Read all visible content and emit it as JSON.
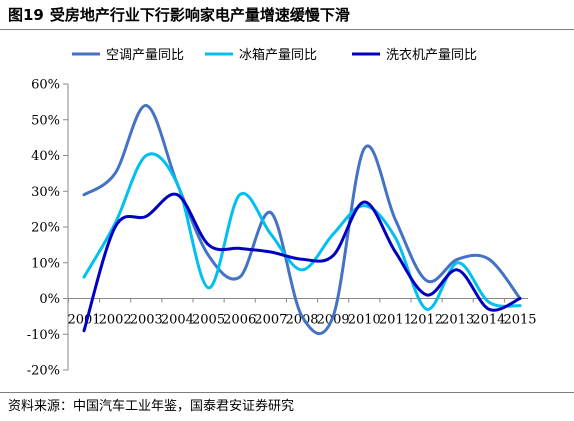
{
  "figure": {
    "number": "图19",
    "title": "受房地产行业下行影响家电产量增速缓慢下滑",
    "source": "资料来源：中国汽车工业年鉴，国泰君安证券研究"
  },
  "chart_data": {
    "type": "line",
    "title": "受房地产行业下行影响家电产量增速缓慢下滑",
    "xlabel": "",
    "ylabel": "",
    "categories": [
      "2001",
      "2002",
      "2003",
      "2004",
      "2005",
      "2006",
      "2007",
      "2008",
      "2009",
      "2010",
      "2011",
      "2012",
      "2013",
      "2014",
      "2015"
    ],
    "x_tick_labels": [
      "2001",
      "2002",
      "2003",
      "2004",
      "2005",
      "2006",
      "2007",
      "2008",
      "2009",
      "2010",
      "2011",
      "2012",
      "2013",
      "2014",
      "2015"
    ],
    "y_tick_labels": [
      "60%",
      "50%",
      "40%",
      "30%",
      "20%",
      "10%",
      "0%",
      "-10%",
      "-20%"
    ],
    "ylim": [
      -0.2,
      0.6
    ],
    "y_ticks": [
      0.6,
      0.5,
      0.4,
      0.3,
      0.2,
      0.1,
      0.0,
      -0.1,
      -0.2
    ],
    "grid": false,
    "legend_position": "top",
    "smooth": true,
    "series": [
      {
        "name": "空调产量同比",
        "color": "#4472C4",
        "values": [
          0.29,
          0.35,
          0.54,
          0.32,
          0.12,
          0.06,
          0.24,
          -0.05,
          -0.05,
          0.42,
          0.22,
          0.05,
          0.11,
          0.11,
          0.0
        ]
      },
      {
        "name": "冰箱产量同比",
        "color": "#00C0F0",
        "values": [
          0.06,
          0.21,
          0.4,
          0.32,
          0.03,
          0.29,
          0.18,
          0.08,
          0.18,
          0.26,
          0.17,
          -0.03,
          0.1,
          -0.01,
          -0.02
        ]
      },
      {
        "name": "洗衣机产量同比",
        "color": "#0000C0",
        "values": [
          -0.09,
          0.2,
          0.23,
          0.29,
          0.15,
          0.14,
          0.13,
          0.11,
          0.12,
          0.27,
          0.13,
          0.01,
          0.08,
          -0.03,
          0.0
        ]
      }
    ]
  }
}
